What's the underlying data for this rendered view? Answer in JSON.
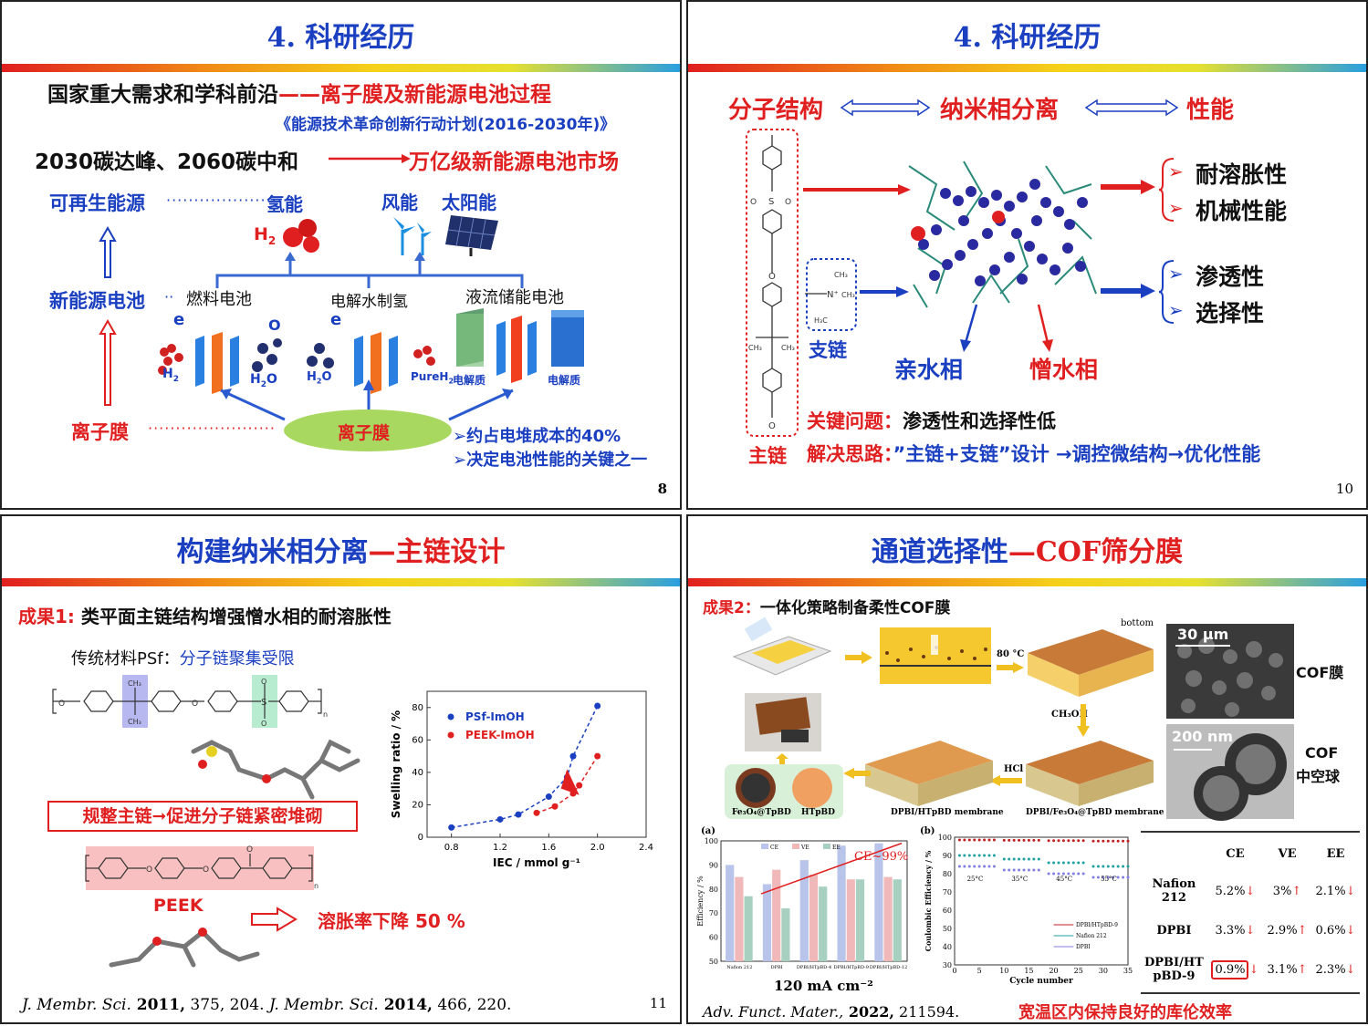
{
  "s1": {
    "title": "4. 科研经历",
    "line1a": "国家重大需求和学科前沿",
    "line1b": "——离子膜及新能源电池过程",
    "plan": "《能源技术革命创新行动计划(2016-2030年)》",
    "line2a": "2030碳达峰、2060碳中和",
    "line2b": "万亿级新能源电池市场",
    "renewable": "可再生能源",
    "hydrogen": "氢能",
    "wind": "风能",
    "solar": "太阳能",
    "h2": "H",
    "new_battery": "新能源电池",
    "fuel_cell": "燃料电池",
    "electrolysis": "电解水制氢",
    "flow_battery": "液流储能电池",
    "ion_membrane": "离子膜",
    "membrane_oval": "离子膜",
    "electrolyte1": "电解质",
    "electrolyte2": "电解质",
    "pureh2": "PureH",
    "h2o": "H",
    "note1": "➢约占电堆成本的40%",
    "note2": "➢决定电池性能的关键之一",
    "page": "8"
  },
  "s2": {
    "title": "4. 科研经历",
    "mol_struct": "分子结构",
    "nano_sep": "纳米相分离",
    "perf": "性能",
    "p1": "耐溶胀性",
    "p2": "机械性能",
    "p3": "渗透性",
    "p4": "选择性",
    "side_chain": "支链",
    "hydrophilic": "亲水相",
    "hydrophobic": "憎水相",
    "main_chain": "主链",
    "key_label": "关键问题：",
    "key_text": "渗透性和选择性低",
    "sol_label": "解决思路：",
    "sol_text": "”主链+支链”设计 →调控微结构→优化性能",
    "page": "10"
  },
  "s3": {
    "title_a": "构建纳米相分离",
    "title_b": "—主链设计",
    "result_label": "成果1: ",
    "result_text": "类平面主链结构增强憎水相的耐溶胀性",
    "psf_a": "传统材料PSf：",
    "psf_b": "分子链聚集受限",
    "box_text": "规整主链➞促进分子链紧密堆砌",
    "peek": "PEEK",
    "swell_drop": "溶胀率下降 50 %",
    "ref_j1": "J. Membr. Sci.",
    "ref_y1": " 2011,",
    "ref_r1": " 375, 204.  ",
    "ref_j2": "J. Membr. Sci.",
    "ref_y2": " 2014,",
    "ref_r2": " 466, 220.",
    "page": "11"
  },
  "s4": {
    "title_a": "通道选择性",
    "title_b": "—COF筛分膜",
    "result_label": "成果2：",
    "result_text": "一体化策略制备柔性COF膜",
    "bottom": "bottom",
    "temp": "80 °C",
    "ch3oh": "CH₃OH",
    "hcl": "HCl",
    "dpbi_htpbd": "DPBI/HTpBD membrane",
    "dpbi_fe": "DPBI/Fe₃O₄@TpBD membrane",
    "fe_tpbd": "Fe₃O₄@TpBD",
    "htpbd": "HTpBD",
    "scale1": "30 μm",
    "scale2": "200 nm",
    "cof_mem": "COF膜",
    "cof_sphere_a": "COF",
    "cof_sphere_b": "中空球",
    "chart_a_label": "(a)",
    "chart_b_label": "(b)",
    "ce99": "CE~99%",
    "current": "120 mA cm⁻²",
    "ref_j": "Adv. Funct. Mater.,",
    "ref_y": " 2022,",
    "ref_r": " 211594.",
    "bottom_note": "宽温区内保持良好的库伦效率",
    "table": {
      "headers": [
        "",
        "CE",
        "VE",
        "EE"
      ],
      "rows": [
        {
          "name": "Nafion 212",
          "ce": "5.2%",
          "ve": "3%",
          "ee": "2.1%"
        },
        {
          "name": "DPBI",
          "ce": "3.3%",
          "ve": "2.9%",
          "ee": "0.6%"
        },
        {
          "name": "DPBI/HT pBD-9",
          "ce": "0.9%",
          "ve": "3.1%",
          "ee": "2.3%"
        }
      ]
    }
  },
  "chart_data": [
    {
      "type": "scatter",
      "xlabel": "IEC / mmol g⁻¹",
      "ylabel": "Swelling ratio / %",
      "xlim": [
        0.6,
        2.4
      ],
      "ylim": [
        0,
        90
      ],
      "xticks": [
        "0.8",
        "1.2",
        "1.6",
        "2.0",
        "2.4"
      ],
      "yticks": [
        "0",
        "20",
        "40",
        "60",
        "80"
      ],
      "legend": "top-left",
      "series": [
        {
          "name": "PSf-ImOH",
          "color": "#1a3fc0",
          "x": [
            0.8,
            1.2,
            1.35,
            1.6,
            1.75,
            1.8,
            2.0
          ],
          "y": [
            6,
            11,
            14,
            25,
            37,
            50,
            81
          ]
        },
        {
          "name": "PEEK-ImOH",
          "color": "#e02020",
          "x": [
            1.5,
            1.65,
            1.8,
            1.85,
            2.0
          ],
          "y": [
            15,
            19,
            27,
            32,
            50
          ]
        }
      ]
    },
    {
      "type": "bar",
      "categories": [
        "Nafion 212",
        "DPBI",
        "DPBI/HTpBD-4",
        "DPBI/HTpBD-9",
        "DPBI/HTpBD-12"
      ],
      "ylabel": "Efficiency / %",
      "ylim": [
        50,
        100
      ],
      "yticks": [
        "50",
        "60",
        "70",
        "80",
        "90",
        "100"
      ],
      "series": [
        {
          "name": "CE",
          "color": "#b8c4ea",
          "values": [
            90,
            82,
            92,
            98,
            99
          ]
        },
        {
          "name": "VE",
          "color": "#f0b8b8",
          "values": [
            85,
            88,
            86,
            84,
            85
          ]
        },
        {
          "name": "EE",
          "color": "#a8d0c0",
          "values": [
            77,
            72,
            81,
            84,
            84
          ]
        }
      ]
    },
    {
      "type": "line",
      "xlabel": "Cycle number",
      "ylabel": "Coulombic Efficiency / %",
      "xlim": [
        0,
        35
      ],
      "ylim": [
        30,
        100
      ],
      "xticks": [
        "0",
        "5",
        "10",
        "15",
        "20",
        "25",
        "30",
        "35"
      ],
      "yticks": [
        "30",
        "40",
        "50",
        "60",
        "70",
        "80",
        "90",
        "100"
      ],
      "annotations": [
        "25°C",
        "35°C",
        "45°C",
        "55°C"
      ],
      "series": [
        {
          "name": "DPBI/HTpBD-9",
          "color": "#c02020",
          "level": 98.5
        },
        {
          "name": "Nafion 212",
          "color": "#20a0a0",
          "level": 90
        },
        {
          "name": "DPBI",
          "color": "#8080e0",
          "level": 84
        }
      ]
    }
  ]
}
